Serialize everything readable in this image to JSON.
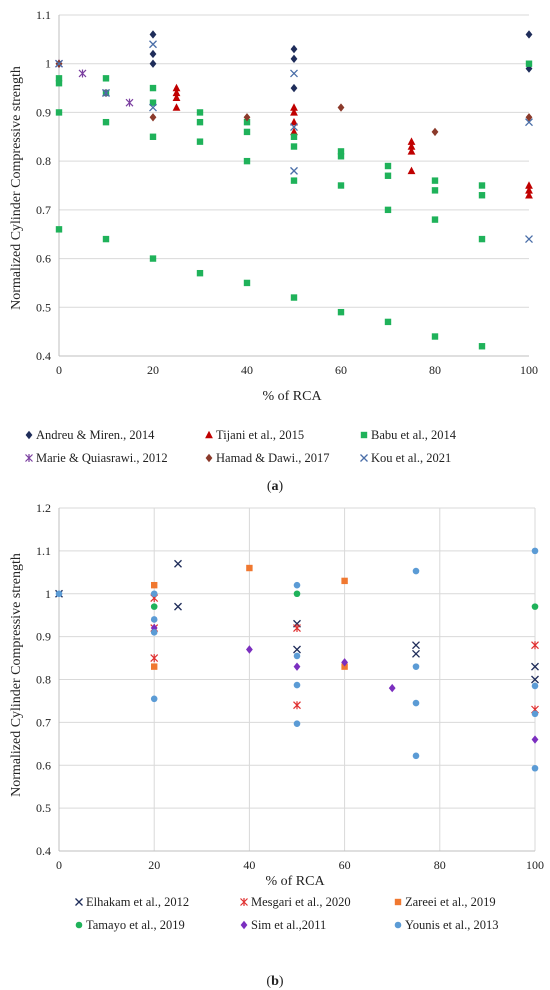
{
  "chart_data": [
    {
      "type": "scatter",
      "panel_label": "a",
      "xlabel": "% of RCA",
      "ylabel": "Normalized Cylinder Compressive strength",
      "xlim": [
        0,
        100
      ],
      "ylim": [
        0.4,
        1.1
      ],
      "xticks": [
        "0",
        "20",
        "40",
        "60",
        "80",
        "100"
      ],
      "yticks": [
        "0.4",
        "0.5",
        "0.6",
        "0.7",
        "0.8",
        "0.9",
        "1",
        "1.1"
      ],
      "grid": "horizontal",
      "legend_position": "bottom",
      "series": [
        {
          "name": "Andreu & Miren., 2014",
          "marker": "diamond",
          "color": "#1f2d5a",
          "points": [
            [
              0,
              1.0
            ],
            [
              20,
              1.06
            ],
            [
              20,
              1.02
            ],
            [
              20,
              1.0
            ],
            [
              50,
              1.03
            ],
            [
              50,
              1.01
            ],
            [
              50,
              0.95
            ],
            [
              100,
              1.06
            ],
            [
              100,
              0.99
            ]
          ]
        },
        {
          "name": "Tijani et al., 2015",
          "marker": "triangle",
          "color": "#c00000",
          "points": [
            [
              25,
              0.95
            ],
            [
              25,
              0.94
            ],
            [
              25,
              0.93
            ],
            [
              25,
              0.91
            ],
            [
              50,
              0.91
            ],
            [
              50,
              0.9
            ],
            [
              50,
              0.88
            ],
            [
              50,
              0.86
            ],
            [
              75,
              0.84
            ],
            [
              75,
              0.83
            ],
            [
              75,
              0.82
            ],
            [
              75,
              0.78
            ],
            [
              100,
              0.75
            ],
            [
              100,
              0.74
            ],
            [
              100,
              0.73
            ]
          ]
        },
        {
          "name": "Babu et al., 2014",
          "marker": "square",
          "color": "#1fb25a",
          "points": [
            [
              0,
              0.97
            ],
            [
              0,
              0.96
            ],
            [
              0,
              0.9
            ],
            [
              0,
              0.66
            ],
            [
              10,
              0.97
            ],
            [
              10,
              0.94
            ],
            [
              10,
              0.88
            ],
            [
              10,
              0.64
            ],
            [
              20,
              0.95
            ],
            [
              20,
              0.92
            ],
            [
              20,
              0.85
            ],
            [
              20,
              0.6
            ],
            [
              30,
              0.9
            ],
            [
              30,
              0.88
            ],
            [
              30,
              0.84
            ],
            [
              30,
              0.57
            ],
            [
              40,
              0.88
            ],
            [
              40,
              0.86
            ],
            [
              40,
              0.8
            ],
            [
              40,
              0.55
            ],
            [
              50,
              0.85
            ],
            [
              50,
              0.83
            ],
            [
              50,
              0.76
            ],
            [
              50,
              0.52
            ],
            [
              60,
              0.82
            ],
            [
              60,
              0.81
            ],
            [
              60,
              0.75
            ],
            [
              60,
              0.49
            ],
            [
              70,
              0.79
            ],
            [
              70,
              0.77
            ],
            [
              70,
              0.7
            ],
            [
              70,
              0.47
            ],
            [
              80,
              0.76
            ],
            [
              80,
              0.74
            ],
            [
              80,
              0.68
            ],
            [
              80,
              0.44
            ],
            [
              90,
              0.75
            ],
            [
              90,
              0.73
            ],
            [
              90,
              0.64
            ],
            [
              90,
              0.42
            ],
            [
              100,
              1.0
            ]
          ]
        },
        {
          "name": "Marie & Quiasrawi., 2012",
          "marker": "asterisk",
          "color": "#7b3fa0",
          "points": [
            [
              0,
              1.0
            ],
            [
              5,
              0.98
            ],
            [
              10,
              0.94
            ],
            [
              15,
              0.92
            ]
          ]
        },
        {
          "name": "Hamad & Dawi., 2017",
          "marker": "diamond",
          "color": "#8b3a2b",
          "points": [
            [
              0,
              1.0
            ],
            [
              20,
              0.89
            ],
            [
              40,
              0.89
            ],
            [
              60,
              0.91
            ],
            [
              80,
              0.86
            ],
            [
              100,
              0.89
            ]
          ]
        },
        {
          "name": "Kou et al., 2021",
          "marker": "x",
          "color": "#4a6ea8",
          "points": [
            [
              0,
              1.0
            ],
            [
              10,
              0.94
            ],
            [
              20,
              1.04
            ],
            [
              20,
              0.91
            ],
            [
              50,
              0.98
            ],
            [
              50,
              0.87
            ],
            [
              50,
              0.78
            ],
            [
              100,
              0.88
            ],
            [
              100,
              0.64
            ]
          ]
        }
      ]
    },
    {
      "type": "scatter",
      "panel_label": "b",
      "xlabel": "% of RCA",
      "ylabel": "Normalized Cylinder Compressive strength",
      "xlim": [
        0,
        100
      ],
      "ylim": [
        0.4,
        1.2
      ],
      "xticks": [
        "0",
        "20",
        "40",
        "60",
        "80",
        "100"
      ],
      "yticks": [
        "0.4",
        "0.5",
        "0.6",
        "0.7",
        "0.8",
        "0.9",
        "1",
        "1.1",
        "1.2"
      ],
      "grid": "both",
      "legend_position": "bottom",
      "series": [
        {
          "name": "Elhakam et al., 2012",
          "marker": "x",
          "color": "#1f2d5a",
          "points": [
            [
              0,
              1.0
            ],
            [
              25,
              1.07
            ],
            [
              25,
              0.97
            ],
            [
              50,
              0.93
            ],
            [
              50,
              0.87
            ],
            [
              75,
              0.88
            ],
            [
              75,
              0.86
            ],
            [
              100,
              0.83
            ],
            [
              100,
              0.8
            ]
          ]
        },
        {
          "name": "Mesgari et al., 2020",
          "marker": "asterisk",
          "color": "#e03030",
          "points": [
            [
              20,
              0.99
            ],
            [
              20,
              0.92
            ],
            [
              20,
              0.85
            ],
            [
              50,
              0.92
            ],
            [
              50,
              0.74
            ],
            [
              100,
              0.88
            ],
            [
              100,
              0.73
            ]
          ]
        },
        {
          "name": "Zareei et al., 2019",
          "marker": "square",
          "color": "#f07830",
          "points": [
            [
              20,
              1.02
            ],
            [
              20,
              0.83
            ],
            [
              40,
              1.06
            ],
            [
              60,
              1.03
            ],
            [
              60,
              0.83
            ]
          ]
        },
        {
          "name": "Tamayo et al., 2019",
          "marker": "circle",
          "color": "#1fb25a",
          "points": [
            [
              20,
              0.97
            ],
            [
              50,
              1.0
            ],
            [
              100,
              0.97
            ]
          ]
        },
        {
          "name": "Sim et al.,2011",
          "marker": "diamond",
          "color": "#7b2fbf",
          "points": [
            [
              20,
              0.92
            ],
            [
              40,
              0.87
            ],
            [
              50,
              0.83
            ],
            [
              60,
              0.84
            ],
            [
              70,
              0.78
            ],
            [
              100,
              0.66
            ]
          ]
        },
        {
          "name": "Younis et al., 2013",
          "marker": "circle",
          "color": "#5b9bd5",
          "points": [
            [
              0,
              1.0
            ],
            [
              20,
              1.0
            ],
            [
              20,
              0.94
            ],
            [
              20,
              0.91
            ],
            [
              20,
              0.755
            ],
            [
              50,
              1.02
            ],
            [
              50,
              0.855
            ],
            [
              50,
              0.787
            ],
            [
              50,
              0.697
            ],
            [
              75,
              1.053
            ],
            [
              75,
              0.83
            ],
            [
              75,
              0.745
            ],
            [
              75,
              0.622
            ],
            [
              100,
              1.1
            ],
            [
              100,
              0.785
            ],
            [
              100,
              0.72
            ],
            [
              100,
              0.593
            ]
          ]
        }
      ]
    }
  ]
}
